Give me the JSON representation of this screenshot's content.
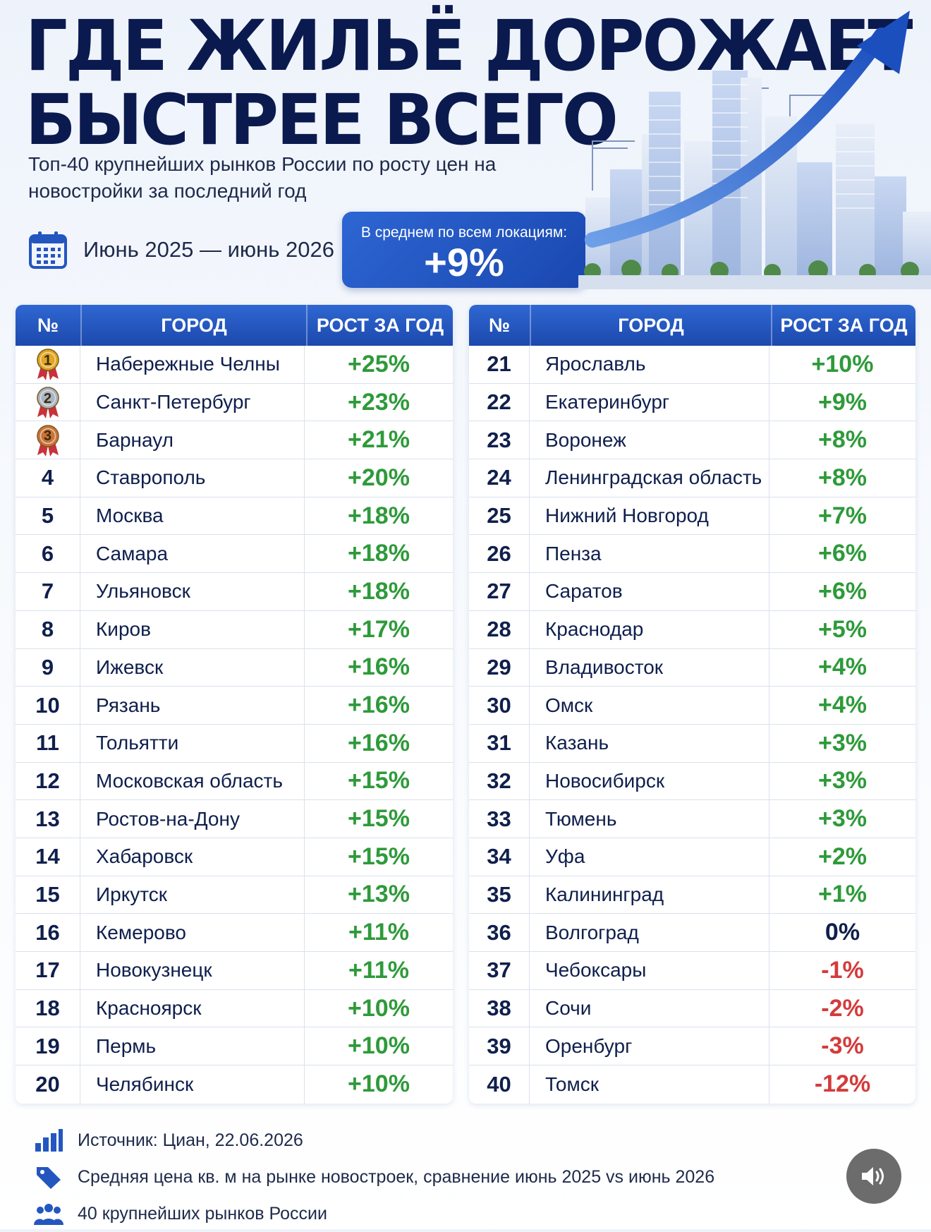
{
  "header": {
    "title_line1": "ГДЕ ЖИЛЬЁ ДОРОЖАЕТ",
    "title_line2": "БЫСТРЕЕ ВСЕГО",
    "subtitle": "Топ-40 крупнейших рынков России по росту цен на новостройки за последний год",
    "period": "Июнь 2025 — июнь 2026",
    "average_label": "В среднем по всем локациям:",
    "average_value": "+9%"
  },
  "table": {
    "columns": [
      "№",
      "ГОРОД",
      "РОСТ ЗА ГОД"
    ],
    "left_rows": [
      {
        "rank": "1",
        "medal": "gold",
        "city": "Набережные Челны",
        "growth": "+25%"
      },
      {
        "rank": "2",
        "medal": "silver",
        "city": "Санкт-Петербург",
        "growth": "+23%"
      },
      {
        "rank": "3",
        "medal": "bronze",
        "city": "Барнаул",
        "growth": "+21%"
      },
      {
        "rank": "4",
        "city": "Ставрополь",
        "growth": "+20%"
      },
      {
        "rank": "5",
        "city": "Москва",
        "growth": "+18%"
      },
      {
        "rank": "6",
        "city": "Самара",
        "growth": "+18%"
      },
      {
        "rank": "7",
        "city": "Ульяновск",
        "growth": "+18%"
      },
      {
        "rank": "8",
        "city": "Киров",
        "growth": "+17%"
      },
      {
        "rank": "9",
        "city": "Ижевск",
        "growth": "+16%"
      },
      {
        "rank": "10",
        "city": "Рязань",
        "growth": "+16%"
      },
      {
        "rank": "11",
        "city": "Тольятти",
        "growth": "+16%"
      },
      {
        "rank": "12",
        "city": "Московская область",
        "growth": "+15%"
      },
      {
        "rank": "13",
        "city": "Ростов-на-Дону",
        "growth": "+15%"
      },
      {
        "rank": "14",
        "city": "Хабаровск",
        "growth": "+15%"
      },
      {
        "rank": "15",
        "city": "Иркутск",
        "growth": "+13%"
      },
      {
        "rank": "16",
        "city": "Кемерово",
        "growth": "+11%"
      },
      {
        "rank": "17",
        "city": "Новокузнецк",
        "growth": "+11%"
      },
      {
        "rank": "18",
        "city": "Красноярск",
        "growth": "+10%"
      },
      {
        "rank": "19",
        "city": "Пермь",
        "growth": "+10%"
      },
      {
        "rank": "20",
        "city": "Челябинск",
        "growth": "+10%"
      }
    ],
    "right_rows": [
      {
        "rank": "21",
        "city": "Ярославль",
        "growth": "+10%"
      },
      {
        "rank": "22",
        "city": "Екатеринбург",
        "growth": "+9%"
      },
      {
        "rank": "23",
        "city": "Воронеж",
        "growth": "+8%"
      },
      {
        "rank": "24",
        "city": "Ленинградская область",
        "growth": "+8%"
      },
      {
        "rank": "25",
        "city": "Нижний Новгород",
        "growth": "+7%"
      },
      {
        "rank": "26",
        "city": "Пенза",
        "growth": "+6%"
      },
      {
        "rank": "27",
        "city": "Саратов",
        "growth": "+6%"
      },
      {
        "rank": "28",
        "city": "Краснодар",
        "growth": "+5%"
      },
      {
        "rank": "29",
        "city": "Владивосток",
        "growth": "+4%"
      },
      {
        "rank": "30",
        "city": "Омск",
        "growth": "+4%"
      },
      {
        "rank": "31",
        "city": "Казань",
        "growth": "+3%"
      },
      {
        "rank": "32",
        "city": "Новосибирск",
        "growth": "+3%"
      },
      {
        "rank": "33",
        "city": "Тюмень",
        "growth": "+3%"
      },
      {
        "rank": "34",
        "city": "Уфа",
        "growth": "+2%"
      },
      {
        "rank": "35",
        "city": "Калининград",
        "growth": "+1%"
      },
      {
        "rank": "36",
        "city": "Волгоград",
        "growth": "0%"
      },
      {
        "rank": "37",
        "city": "Чебоксары",
        "growth": "-1%"
      },
      {
        "rank": "38",
        "city": "Сочи",
        "growth": "-2%"
      },
      {
        "rank": "39",
        "city": "Оренбург",
        "growth": "-3%"
      },
      {
        "rank": "40",
        "city": "Томск",
        "growth": "-12%"
      }
    ]
  },
  "footer": {
    "source": "Источник: Циан, 22.06.2026",
    "method": "Средняя цена кв. м на рынке новостроек, сравнение июнь 2025 vs июнь 2026",
    "scope": "40 крупнейших рынков России"
  },
  "icons": {
    "calendar": "calendar-icon",
    "source": "bar-chart-icon",
    "method": "price-tag-icon",
    "scope": "people-icon",
    "sound": "speaker-icon"
  },
  "colors": {
    "title": "#0b1a4e",
    "header_blue": "#2f67d2",
    "positive": "#2e9a3a",
    "negative": "#d43b3b",
    "gold": "#e0a624",
    "silver": "#aab4c2",
    "bronze": "#c9733a"
  }
}
